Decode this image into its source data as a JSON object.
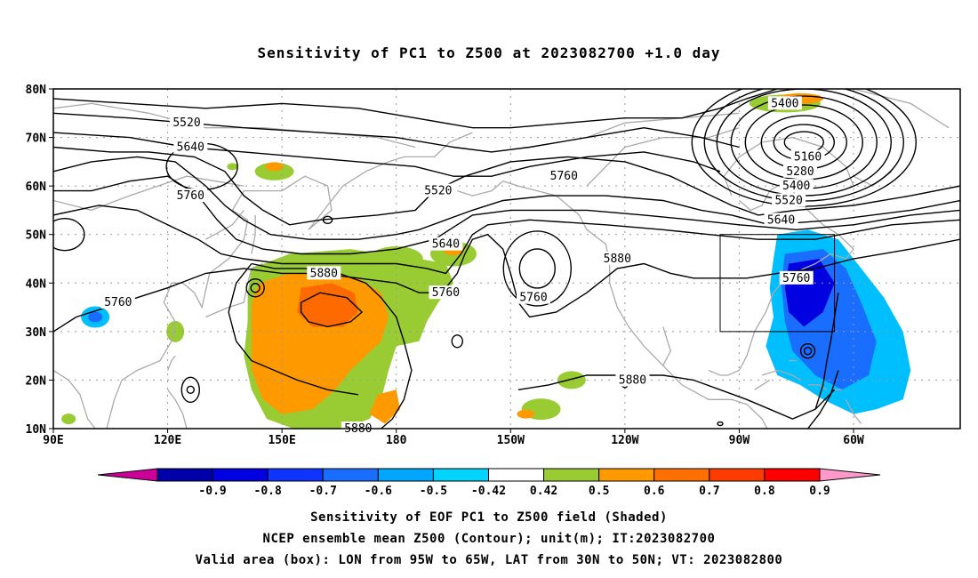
{
  "title": "Sensitivity of PC1 to Z500 at 2023082700 +1.0 day",
  "lat_ticks": [
    {
      "label": "80N",
      "lat": 80
    },
    {
      "label": "70N",
      "lat": 70
    },
    {
      "label": "60N",
      "lat": 60
    },
    {
      "label": "50N",
      "lat": 50
    },
    {
      "label": "40N",
      "lat": 40
    },
    {
      "label": "30N",
      "lat": 30
    },
    {
      "label": "20N",
      "lat": 20
    },
    {
      "label": "10N",
      "lat": 10
    }
  ],
  "lon_ticks": [
    {
      "label": "90E",
      "lon": 90
    },
    {
      "label": "120E",
      "lon": 120
    },
    {
      "label": "150E",
      "lon": 150
    },
    {
      "label": "180",
      "lon": 180
    },
    {
      "label": "150W",
      "lon": 210
    },
    {
      "label": "120W",
      "lon": 240
    },
    {
      "label": "90W",
      "lon": 270
    },
    {
      "label": "60W",
      "lon": 300
    }
  ],
  "contour_labels": [
    {
      "text": "5520",
      "lon": 125,
      "lat": 73
    },
    {
      "text": "5640",
      "lon": 126,
      "lat": 68
    },
    {
      "text": "5760",
      "lon": 126,
      "lat": 58
    },
    {
      "text": "5520",
      "lon": 191,
      "lat": 59
    },
    {
      "text": "5760",
      "lon": 224,
      "lat": 62
    },
    {
      "text": "5400",
      "lon": 282,
      "lat": 77
    },
    {
      "text": "5160",
      "lon": 288,
      "lat": 66
    },
    {
      "text": "5280",
      "lon": 286,
      "lat": 63
    },
    {
      "text": "5400",
      "lon": 285,
      "lat": 60
    },
    {
      "text": "5520",
      "lon": 283,
      "lat": 57
    },
    {
      "text": "5640",
      "lon": 281,
      "lat": 53
    },
    {
      "text": "5640",
      "lon": 193,
      "lat": 48
    },
    {
      "text": "5880",
      "lon": 161,
      "lat": 42
    },
    {
      "text": "5760",
      "lon": 193,
      "lat": 38
    },
    {
      "text": "5760",
      "lon": 107,
      "lat": 36
    },
    {
      "text": "5760",
      "lon": 216,
      "lat": 37
    },
    {
      "text": "5880",
      "lon": 238,
      "lat": 45
    },
    {
      "text": "5760",
      "lon": 285,
      "lat": 41
    },
    {
      "text": "5880",
      "lon": 242,
      "lat": 20
    },
    {
      "text": "5880",
      "lon": 170,
      "lat": 10
    }
  ],
  "colorbar": {
    "labels": [
      "-0.9",
      "-0.8",
      "-0.7",
      "-0.6",
      "-0.5",
      "-0.42",
      "0.42",
      "0.5",
      "0.6",
      "0.7",
      "0.8",
      "0.9"
    ],
    "colors": [
      "#0000a8",
      "#0000e0",
      "#1034ff",
      "#1a6eff",
      "#00a6ff",
      "#00d4ff",
      "#ffffff",
      "#99cc33",
      "#ff9900",
      "#ff7000",
      "#ff3c00",
      "#ff0000"
    ],
    "low_end_color": "#cc0099",
    "high_end_color": "#ff99cc"
  },
  "shading_colors": {
    "positive_light": "#99cc33",
    "positive_mid": "#ff9900",
    "positive_high": "#ff6a00",
    "negative_light": "#00bfff",
    "negative_mid": "#1a6eff",
    "negative_high": "#0000e0"
  },
  "coast_color": "#aaaaaa",
  "footer": {
    "line1": "Sensitivity of EOF PC1 to Z500 field (Shaded)",
    "line2": "NCEP ensemble mean Z500 (Contour); unit(m); IT:2023082700",
    "line3": "Valid area (box): LON from 95W to 65W, LAT from 30N to 50N; VT: 2023082800"
  },
  "valid_box": {
    "lon_min": 265,
    "lon_max": 295,
    "lat_min": 30,
    "lat_max": 50
  }
}
